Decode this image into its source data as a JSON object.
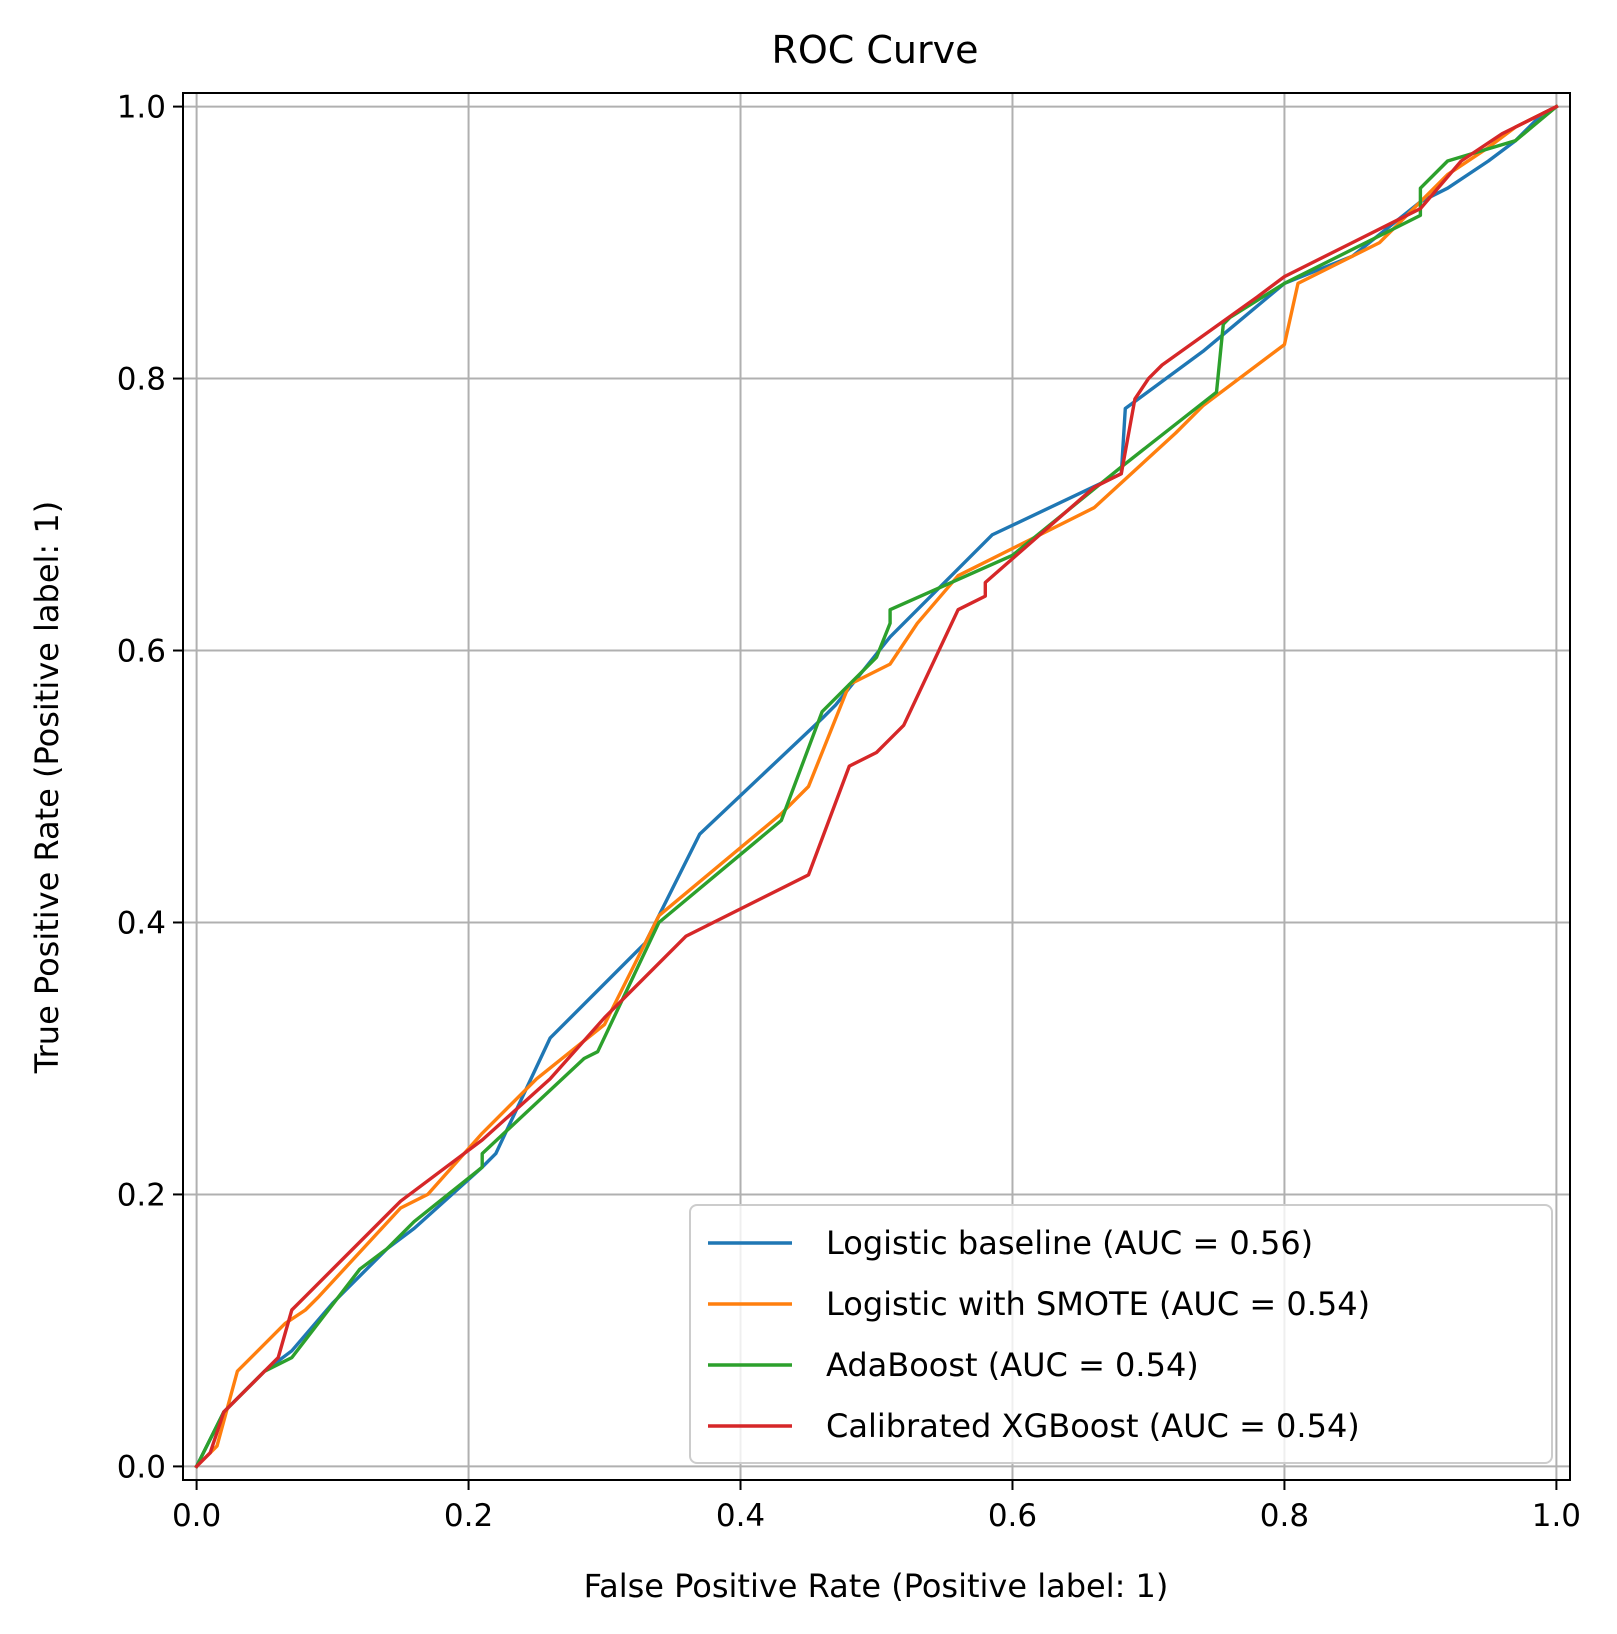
{
  "chart_data": {
    "type": "line",
    "title": "ROC Curve",
    "xlabel": "False Positive Rate (Positive label: 1)",
    "ylabel": "True Positive Rate (Positive label: 1)",
    "xlim": [
      -0.01,
      1.01
    ],
    "ylim": [
      -0.01,
      1.01
    ],
    "xticks": [
      0.0,
      0.2,
      0.4,
      0.6,
      0.8,
      1.0
    ],
    "yticks": [
      0.0,
      0.2,
      0.4,
      0.6,
      0.8,
      1.0
    ],
    "xtick_labels": [
      "0.0",
      "0.2",
      "0.4",
      "0.6",
      "0.8",
      "1.0"
    ],
    "ytick_labels": [
      "0.0",
      "0.2",
      "0.4",
      "0.6",
      "0.8",
      "1.0"
    ],
    "grid": true,
    "legend_position": "lower-right",
    "series": [
      {
        "name": "Logistic baseline (AUC = 0.56)",
        "color": "#1f77b4",
        "points": [
          [
            0,
            0
          ],
          [
            0.01,
            0.02
          ],
          [
            0.02,
            0.04
          ],
          [
            0.05,
            0.07
          ],
          [
            0.07,
            0.085
          ],
          [
            0.1,
            0.12
          ],
          [
            0.14,
            0.16
          ],
          [
            0.16,
            0.175
          ],
          [
            0.21,
            0.22
          ],
          [
            0.22,
            0.23
          ],
          [
            0.26,
            0.315
          ],
          [
            0.33,
            0.385
          ],
          [
            0.37,
            0.465
          ],
          [
            0.46,
            0.55
          ],
          [
            0.47,
            0.56
          ],
          [
            0.51,
            0.61
          ],
          [
            0.52,
            0.62
          ],
          [
            0.585,
            0.685
          ],
          [
            0.68,
            0.73
          ],
          [
            0.683,
            0.778
          ],
          [
            0.74,
            0.82
          ],
          [
            0.77,
            0.845
          ],
          [
            0.8,
            0.87
          ],
          [
            0.85,
            0.89
          ],
          [
            0.9,
            0.93
          ],
          [
            0.92,
            0.94
          ],
          [
            0.95,
            0.96
          ],
          [
            0.97,
            0.975
          ],
          [
            0.99,
            0.995
          ],
          [
            1.0,
            1.0
          ]
        ]
      },
      {
        "name": "Logistic with SMOTE (AUC = 0.54)",
        "color": "#ff7f0e",
        "points": [
          [
            0,
            0
          ],
          [
            0.015,
            0.015
          ],
          [
            0.03,
            0.07
          ],
          [
            0.065,
            0.105
          ],
          [
            0.08,
            0.115
          ],
          [
            0.09,
            0.125
          ],
          [
            0.15,
            0.19
          ],
          [
            0.17,
            0.2
          ],
          [
            0.21,
            0.245
          ],
          [
            0.25,
            0.285
          ],
          [
            0.3,
            0.325
          ],
          [
            0.34,
            0.405
          ],
          [
            0.43,
            0.48
          ],
          [
            0.45,
            0.5
          ],
          [
            0.48,
            0.575
          ],
          [
            0.51,
            0.59
          ],
          [
            0.53,
            0.62
          ],
          [
            0.56,
            0.655
          ],
          [
            0.63,
            0.69
          ],
          [
            0.66,
            0.705
          ],
          [
            0.72,
            0.76
          ],
          [
            0.74,
            0.78
          ],
          [
            0.8,
            0.825
          ],
          [
            0.81,
            0.87
          ],
          [
            0.87,
            0.9
          ],
          [
            0.92,
            0.95
          ],
          [
            0.95,
            0.97
          ],
          [
            0.97,
            0.985
          ],
          [
            1.0,
            1.0
          ]
        ]
      },
      {
        "name": "AdaBoost (AUC = 0.54)",
        "color": "#2ca02c",
        "points": [
          [
            0,
            0
          ],
          [
            0.02,
            0.04
          ],
          [
            0.05,
            0.07
          ],
          [
            0.07,
            0.08
          ],
          [
            0.12,
            0.145
          ],
          [
            0.14,
            0.16
          ],
          [
            0.16,
            0.18
          ],
          [
            0.21,
            0.22
          ],
          [
            0.21,
            0.23
          ],
          [
            0.285,
            0.3
          ],
          [
            0.295,
            0.305
          ],
          [
            0.34,
            0.4
          ],
          [
            0.43,
            0.475
          ],
          [
            0.46,
            0.555
          ],
          [
            0.5,
            0.595
          ],
          [
            0.51,
            0.62
          ],
          [
            0.51,
            0.63
          ],
          [
            0.6,
            0.67
          ],
          [
            0.68,
            0.735
          ],
          [
            0.75,
            0.79
          ],
          [
            0.755,
            0.84
          ],
          [
            0.76,
            0.845
          ],
          [
            0.8,
            0.87
          ],
          [
            0.85,
            0.895
          ],
          [
            0.9,
            0.92
          ],
          [
            0.9,
            0.94
          ],
          [
            0.92,
            0.96
          ],
          [
            0.97,
            0.975
          ],
          [
            1.0,
            1.0
          ]
        ]
      },
      {
        "name": "Calibrated XGBoost (AUC = 0.54)",
        "color": "#d62728",
        "points": [
          [
            0,
            0
          ],
          [
            0.01,
            0.01
          ],
          [
            0.015,
            0.025
          ],
          [
            0.02,
            0.04
          ],
          [
            0.06,
            0.08
          ],
          [
            0.07,
            0.115
          ],
          [
            0.08,
            0.125
          ],
          [
            0.15,
            0.195
          ],
          [
            0.21,
            0.24
          ],
          [
            0.26,
            0.285
          ],
          [
            0.3,
            0.33
          ],
          [
            0.36,
            0.39
          ],
          [
            0.45,
            0.435
          ],
          [
            0.48,
            0.515
          ],
          [
            0.5,
            0.525
          ],
          [
            0.52,
            0.545
          ],
          [
            0.56,
            0.63
          ],
          [
            0.58,
            0.64
          ],
          [
            0.58,
            0.65
          ],
          [
            0.66,
            0.72
          ],
          [
            0.67,
            0.725
          ],
          [
            0.68,
            0.73
          ],
          [
            0.69,
            0.785
          ],
          [
            0.7,
            0.8
          ],
          [
            0.71,
            0.81
          ],
          [
            0.78,
            0.86
          ],
          [
            0.8,
            0.875
          ],
          [
            0.85,
            0.9
          ],
          [
            0.9,
            0.925
          ],
          [
            0.93,
            0.96
          ],
          [
            0.96,
            0.98
          ],
          [
            0.98,
            0.99
          ],
          [
            1.0,
            1.0
          ]
        ]
      }
    ]
  }
}
